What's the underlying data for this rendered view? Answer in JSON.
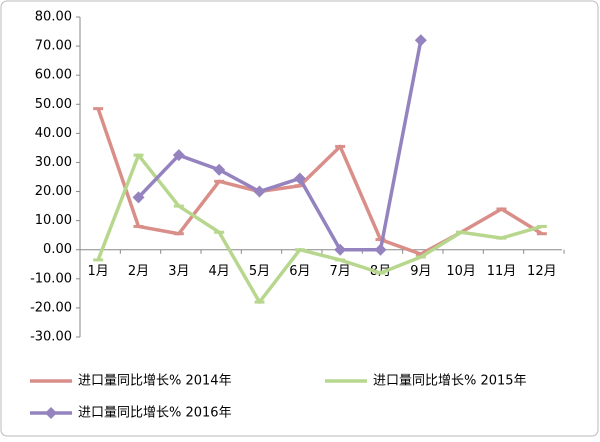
{
  "chart_data": {
    "type": "line",
    "categories": [
      "1月",
      "2月",
      "3月",
      "4月",
      "5月",
      "6月",
      "7月",
      "8月",
      "9月",
      "10月",
      "11月",
      "12月"
    ],
    "series": [
      {
        "name": "进口量同比增长% 2014年",
        "color": "#d98e89",
        "marker": "dash",
        "values": [
          48.5,
          8,
          5.5,
          23.5,
          20,
          22,
          35.5,
          3.5,
          -1.5,
          6,
          14,
          5.5
        ]
      },
      {
        "name": "进口量同比增长% 2015年",
        "color": "#b8d78e",
        "marker": "dash",
        "values": [
          -3.5,
          32.5,
          15,
          6,
          -18,
          0,
          -3.5,
          -8,
          -2.5,
          6,
          4,
          8
        ]
      },
      {
        "name": "进口量同比增长% 2016年",
        "color": "#9583c0",
        "marker": "diamond",
        "values": [
          null,
          18,
          32.5,
          27.5,
          20,
          24.5,
          0,
          0,
          72,
          null,
          null,
          null
        ]
      }
    ],
    "ylim": [
      -30,
      80
    ],
    "yticks": [
      {
        "value": -30,
        "label": "-30.00"
      },
      {
        "value": -20,
        "label": "-20.00"
      },
      {
        "value": -10,
        "label": "-10.00"
      },
      {
        "value": 0,
        "label": "0.00"
      },
      {
        "value": 10,
        "label": "10.00"
      },
      {
        "value": 20,
        "label": "20.00"
      },
      {
        "value": 30,
        "label": "30.00"
      },
      {
        "value": 40,
        "label": "40.00"
      },
      {
        "value": 50,
        "label": "50.00"
      },
      {
        "value": 60,
        "label": "60.00"
      },
      {
        "value": 70,
        "label": "70.00"
      },
      {
        "value": 80,
        "label": "80.00"
      }
    ],
    "grid": false
  }
}
